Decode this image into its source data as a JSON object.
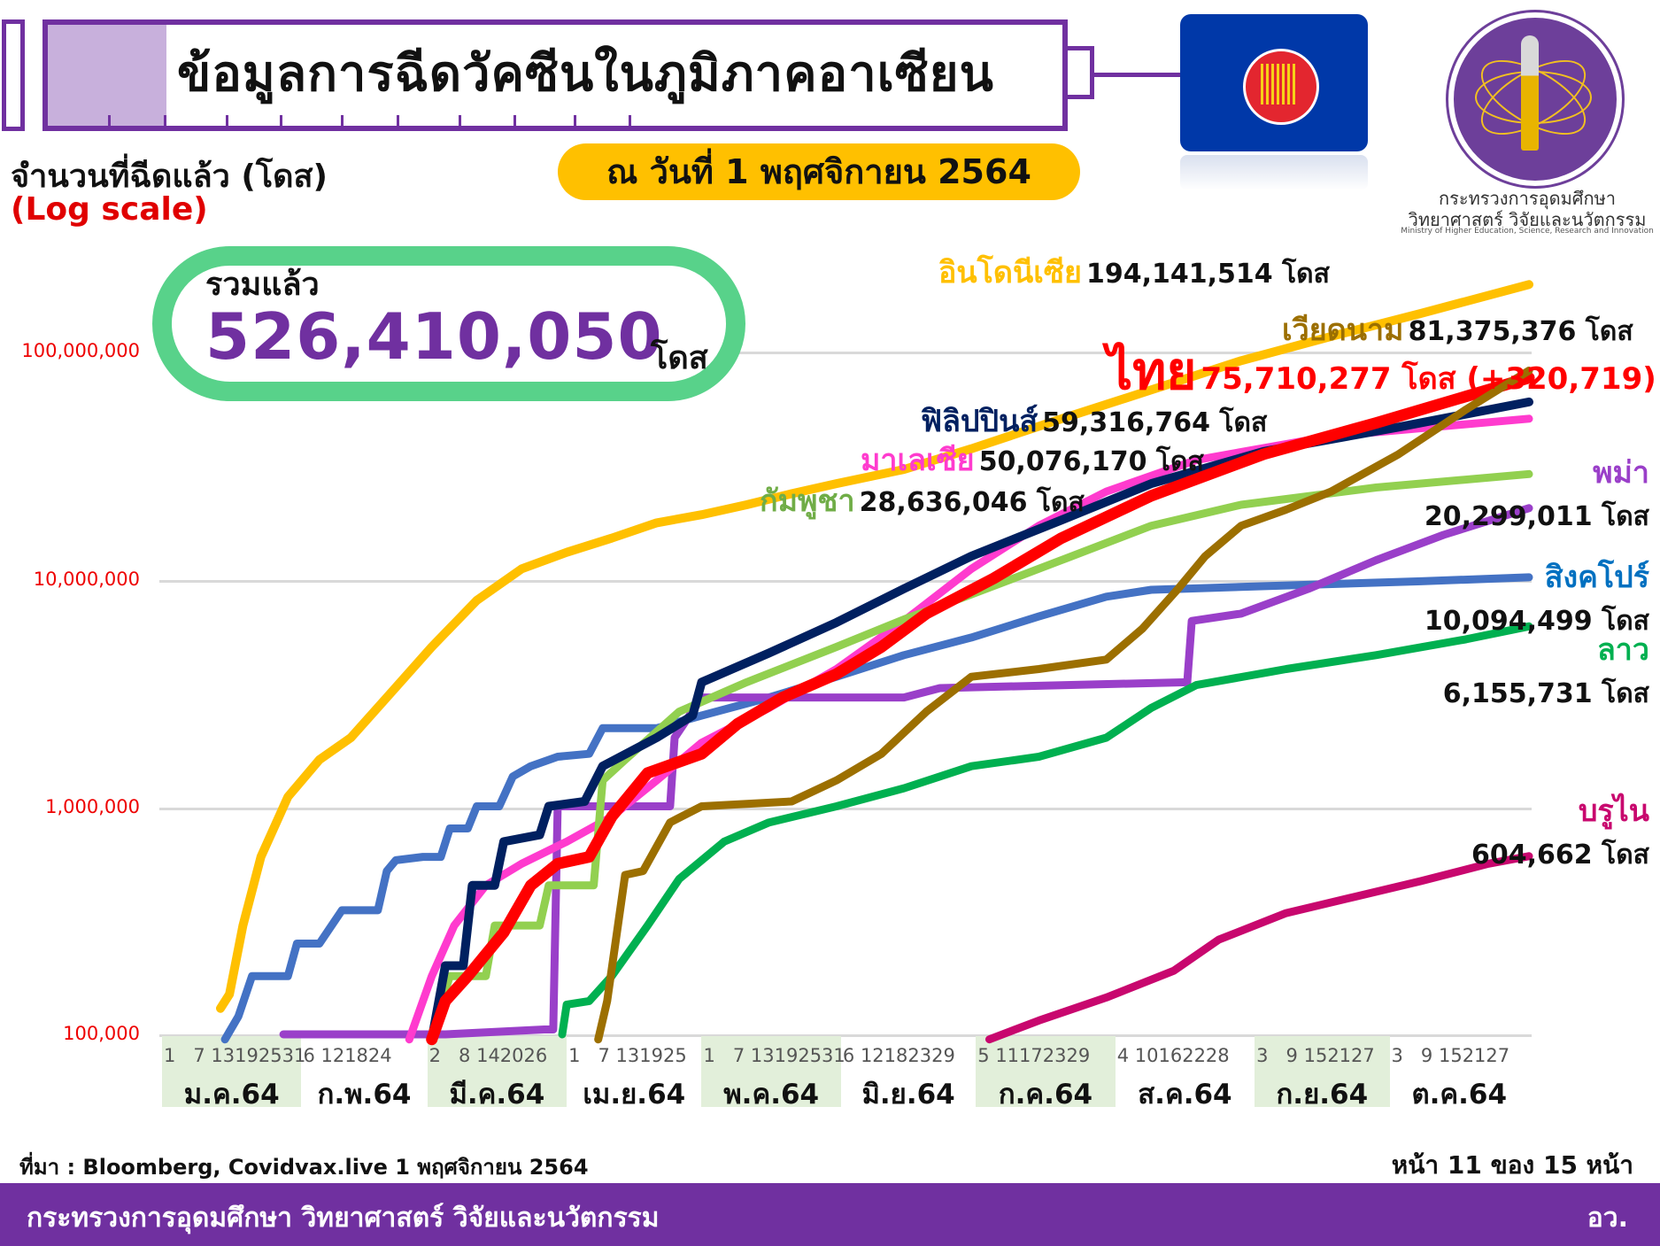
{
  "header": {
    "title": "ข้อมูลการฉีดวัคซีนในภูมิภาคอาเซียน",
    "date_badge": "ณ วันที่ 1 พฤศจิกายน 2564",
    "ylabel_line1": "จำนวนที่ฉีดแล้ว (โดส)",
    "ylabel_line2": "(Log scale)"
  },
  "logo": {
    "flag_icon": "asean-flag-icon",
    "ministry_line1": "กระทรวงการอุดมศึกษา",
    "ministry_line2": "วิทยาศาสตร์ วิจัยและนวัตกรรม",
    "ministry_en": "Ministry of Higher Education, Science, Research and Innovation"
  },
  "total": {
    "label": "รวมแล้ว",
    "value": "526,410,050",
    "unit": "โดส"
  },
  "y_ticks": [
    "100,000,000",
    "10,000,000",
    "1,000,000",
    "100,000"
  ],
  "x_axis": {
    "months": [
      {
        "label": "ม.ค.64",
        "days": "1   7 13192531",
        "shaded": true
      },
      {
        "label": "ก.พ.64",
        "days": "6 121824",
        "shaded": false
      },
      {
        "label": "มี.ค.64",
        "days": "2   8 142026",
        "shaded": true
      },
      {
        "label": "เม.ย.64",
        "days": "1   7 131925",
        "shaded": false
      },
      {
        "label": "พ.ค.64",
        "days": "1   7 13192531",
        "shaded": true
      },
      {
        "label": "มิ.ย.64",
        "days": "6 12182329",
        "shaded": false
      },
      {
        "label": "ก.ค.64",
        "days": "5 11172329",
        "shaded": true
      },
      {
        "label": "ส.ค.64",
        "days": "4 10162228",
        "shaded": false
      },
      {
        "label": "ก.ย.64",
        "days": "3   9 152127",
        "shaded": true
      },
      {
        "label": "ต.ค.64",
        "days": "3   9 152127",
        "shaded": false
      }
    ]
  },
  "series_labels": [
    {
      "name": "อินโดนีเซีย",
      "value": "194,141,514 โดส",
      "color": "#ffc000"
    },
    {
      "name": "เวียดนาม",
      "value": "81,375,376 โดส",
      "color": "#9c6f00"
    },
    {
      "name": "ไทย",
      "value": "75,710,277 โดส (+320,719)",
      "color": "#ff0000"
    },
    {
      "name": "ฟิลิปปินส์",
      "value": "59,316,764 โดส",
      "color": "#002060"
    },
    {
      "name": "มาเลเซีย",
      "value": "50,076,170 โดส",
      "color": "#ff3bce"
    },
    {
      "name": "กัมพูชา",
      "value": "28,636,046 โดส",
      "color": "#70ad47"
    },
    {
      "name": "พม่า",
      "value": "20,299,011 โดส",
      "color": "#9a3fc9"
    },
    {
      "name": "สิงคโปร์",
      "value": "10,094,499 โดส",
      "color": "#0070c0"
    },
    {
      "name": "ลาว",
      "value": "6,155,731 โดส",
      "color": "#00b050"
    },
    {
      "name": "บรูไน",
      "value": "604,662 โดส",
      "color": "#c8076e"
    }
  ],
  "footer": {
    "source": "ที่มา : Bloomberg, Covidvax.live 1 พฤศจิกายน 2564",
    "page": "หน้า 11 ของ 15 หน้า",
    "org": "กระทรวงการอุดมศึกษา วิทยาศาสตร์ วิจัยและนวัตกรรม",
    "org_short": "อว."
  },
  "chart_data": {
    "type": "line",
    "title": "ข้อมูลการฉีดวัคซีนในภูมิภาคอาเซียน",
    "subtitle": "ณ วันที่ 1 พฤศจิกายน 2564",
    "ylabel": "จำนวนที่ฉีดแล้ว (โดส) (Log scale)",
    "xlabel": "",
    "yscale": "log",
    "ylim": [
      100000,
      200000000
    ],
    "grid": true,
    "legend_position": "inline-right",
    "x_range": [
      "2021-01-01",
      "2021-10-31"
    ],
    "x_unit": "day_of_year_2021",
    "series": [
      {
        "name": "อินโดนีเซีย",
        "color": "#ffc000",
        "width": 10,
        "final": 194141514,
        "points": [
          [
            13,
            130000
          ],
          [
            15,
            150000
          ],
          [
            18,
            300000
          ],
          [
            22,
            600000
          ],
          [
            28,
            1100000
          ],
          [
            35,
            1600000
          ],
          [
            42,
            2000000
          ],
          [
            50,
            3000000
          ],
          [
            60,
            5000000
          ],
          [
            70,
            8000000
          ],
          [
            80,
            11000000
          ],
          [
            90,
            13000000
          ],
          [
            100,
            15000000
          ],
          [
            110,
            17500000
          ],
          [
            120,
            19000000
          ],
          [
            130,
            21000000
          ],
          [
            140,
            23500000
          ],
          [
            150,
            26000000
          ],
          [
            165,
            30000000
          ],
          [
            180,
            37000000
          ],
          [
            200,
            50000000
          ],
          [
            220,
            67000000
          ],
          [
            240,
            90000000
          ],
          [
            260,
            115000000
          ],
          [
            280,
            145000000
          ],
          [
            304,
            194141514
          ]
        ]
      },
      {
        "name": "สิงคโปร์",
        "color": "#4472c4",
        "width": 9,
        "final": 10094499,
        "points": [
          [
            14,
            95000
          ],
          [
            17,
            120000
          ],
          [
            20,
            180000
          ],
          [
            28,
            180000
          ],
          [
            30,
            250000
          ],
          [
            35,
            250000
          ],
          [
            40,
            350000
          ],
          [
            48,
            350000
          ],
          [
            50,
            520000
          ],
          [
            52,
            580000
          ],
          [
            58,
            600000
          ],
          [
            62,
            600000
          ],
          [
            64,
            800000
          ],
          [
            68,
            800000
          ],
          [
            70,
            1000000
          ],
          [
            75,
            1000000
          ],
          [
            78,
            1350000
          ],
          [
            82,
            1500000
          ],
          [
            88,
            1650000
          ],
          [
            95,
            1700000
          ],
          [
            98,
            2200000
          ],
          [
            110,
            2200000
          ],
          [
            120,
            2500000
          ],
          [
            135,
            3000000
          ],
          [
            150,
            3700000
          ],
          [
            165,
            4600000
          ],
          [
            180,
            5500000
          ],
          [
            195,
            6800000
          ],
          [
            210,
            8300000
          ],
          [
            220,
            8900000
          ],
          [
            250,
            9300000
          ],
          [
            280,
            9700000
          ],
          [
            304,
            10094499
          ]
        ]
      },
      {
        "name": "พม่า",
        "color": "#9a3fc9",
        "width": 9,
        "final": 20299011,
        "points": [
          [
            27,
            100000
          ],
          [
            63,
            100000
          ],
          [
            85,
            105000
          ],
          [
            87,
            105000
          ],
          [
            88,
            1000000
          ],
          [
            113,
            1000000
          ],
          [
            114,
            2000000
          ],
          [
            120,
            3000000
          ],
          [
            165,
            3000000
          ],
          [
            173,
            3300000
          ],
          [
            228,
            3500000
          ],
          [
            229,
            6500000
          ],
          [
            240,
            7000000
          ],
          [
            255,
            9000000
          ],
          [
            270,
            12000000
          ],
          [
            285,
            15500000
          ],
          [
            304,
            20299011
          ]
        ]
      },
      {
        "name": "มาเลเซีย",
        "color": "#ff3bce",
        "width": 9,
        "final": 50076170,
        "points": [
          [
            55,
            95000
          ],
          [
            60,
            180000
          ],
          [
            65,
            300000
          ],
          [
            72,
            450000
          ],
          [
            80,
            560000
          ],
          [
            90,
            700000
          ],
          [
            100,
            900000
          ],
          [
            110,
            1300000
          ],
          [
            120,
            1900000
          ],
          [
            135,
            2700000
          ],
          [
            150,
            4000000
          ],
          [
            165,
            6500000
          ],
          [
            180,
            11000000
          ],
          [
            195,
            17000000
          ],
          [
            210,
            24000000
          ],
          [
            230,
            33000000
          ],
          [
            260,
            42000000
          ],
          [
            304,
            50076170
          ]
        ]
      },
      {
        "name": "กัมพูชา",
        "color": "#92d050",
        "width": 9,
        "final": 28636046,
        "points": [
          [
            60,
            100000
          ],
          [
            64,
            180000
          ],
          [
            72,
            180000
          ],
          [
            74,
            300000
          ],
          [
            84,
            300000
          ],
          [
            86,
            450000
          ],
          [
            96,
            450000
          ],
          [
            98,
            1300000
          ],
          [
            103,
            1600000
          ],
          [
            115,
            2600000
          ],
          [
            130,
            3500000
          ],
          [
            150,
            5000000
          ],
          [
            165,
            6600000
          ],
          [
            180,
            8500000
          ],
          [
            200,
            12000000
          ],
          [
            220,
            17000000
          ],
          [
            240,
            21000000
          ],
          [
            270,
            25000000
          ],
          [
            304,
            28636046
          ]
        ]
      },
      {
        "name": "ฟิลิปปินส์",
        "color": "#002060",
        "width": 10,
        "final": 59316764,
        "points": [
          [
            60,
            95000
          ],
          [
            63,
            200000
          ],
          [
            67,
            200000
          ],
          [
            69,
            450000
          ],
          [
            74,
            450000
          ],
          [
            76,
            700000
          ],
          [
            84,
            750000
          ],
          [
            86,
            1000000
          ],
          [
            94,
            1050000
          ],
          [
            98,
            1500000
          ],
          [
            110,
            2000000
          ],
          [
            118,
            2500000
          ],
          [
            120,
            3500000
          ],
          [
            135,
            4700000
          ],
          [
            150,
            6400000
          ],
          [
            165,
            9000000
          ],
          [
            180,
            12500000
          ],
          [
            200,
            18000000
          ],
          [
            220,
            26000000
          ],
          [
            245,
            36000000
          ],
          [
            275,
            46000000
          ],
          [
            304,
            59316764
          ]
        ]
      },
      {
        "name": "ไทย",
        "color": "#ff0000",
        "width": 13,
        "final": 75710277,
        "points": [
          [
            60,
            95000
          ],
          [
            63,
            140000
          ],
          [
            68,
            180000
          ],
          [
            76,
            280000
          ],
          [
            82,
            450000
          ],
          [
            88,
            560000
          ],
          [
            95,
            600000
          ],
          [
            100,
            900000
          ],
          [
            108,
            1400000
          ],
          [
            120,
            1700000
          ],
          [
            128,
            2300000
          ],
          [
            138,
            3000000
          ],
          [
            150,
            3800000
          ],
          [
            160,
            5000000
          ],
          [
            170,
            7000000
          ],
          [
            185,
            10000000
          ],
          [
            200,
            15000000
          ],
          [
            220,
            23000000
          ],
          [
            245,
            35000000
          ],
          [
            270,
            48000000
          ],
          [
            304,
            75710277
          ]
        ]
      },
      {
        "name": "ลาว",
        "color": "#00b050",
        "width": 9,
        "final": 6155731,
        "points": [
          [
            89,
            100000
          ],
          [
            90,
            135000
          ],
          [
            95,
            140000
          ],
          [
            100,
            180000
          ],
          [
            108,
            300000
          ],
          [
            115,
            480000
          ],
          [
            125,
            700000
          ],
          [
            135,
            850000
          ],
          [
            150,
            1000000
          ],
          [
            165,
            1200000
          ],
          [
            180,
            1500000
          ],
          [
            195,
            1650000
          ],
          [
            210,
            2000000
          ],
          [
            220,
            2700000
          ],
          [
            230,
            3400000
          ],
          [
            250,
            4000000
          ],
          [
            270,
            4600000
          ],
          [
            290,
            5400000
          ],
          [
            304,
            6155731
          ]
        ]
      },
      {
        "name": "เวียดนาม",
        "color": "#9c6f00",
        "width": 9,
        "final": 81375376,
        "points": [
          [
            97,
            95000
          ],
          [
            99,
            140000
          ],
          [
            103,
            500000
          ],
          [
            107,
            520000
          ],
          [
            113,
            850000
          ],
          [
            120,
            1000000
          ],
          [
            140,
            1050000
          ],
          [
            150,
            1300000
          ],
          [
            160,
            1700000
          ],
          [
            170,
            2600000
          ],
          [
            180,
            3700000
          ],
          [
            195,
            4000000
          ],
          [
            210,
            4400000
          ],
          [
            218,
            6000000
          ],
          [
            226,
            9000000
          ],
          [
            232,
            12500000
          ],
          [
            240,
            17000000
          ],
          [
            250,
            20000000
          ],
          [
            260,
            24000000
          ],
          [
            275,
            35000000
          ],
          [
            290,
            55000000
          ],
          [
            304,
            81375376
          ]
        ]
      },
      {
        "name": "บรูไน",
        "color": "#c8076e",
        "width": 9,
        "final": 604662,
        "points": [
          [
            184,
            95000
          ],
          [
            195,
            115000
          ],
          [
            210,
            145000
          ],
          [
            225,
            190000
          ],
          [
            235,
            260000
          ],
          [
            250,
            340000
          ],
          [
            265,
            400000
          ],
          [
            280,
            470000
          ],
          [
            295,
            560000
          ],
          [
            304,
            604662
          ]
        ]
      }
    ]
  }
}
